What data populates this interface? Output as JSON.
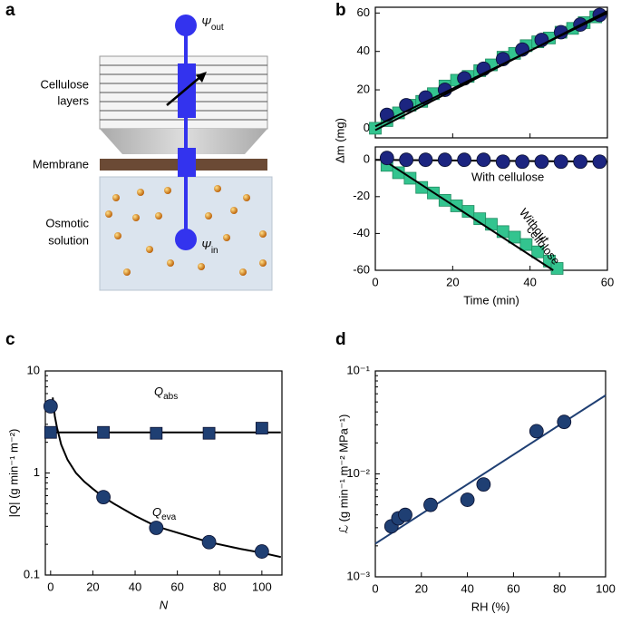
{
  "panel_labels": [
    "a",
    "b",
    "c",
    "d"
  ],
  "diagram": {
    "psi_out": {
      "symbol": "Ψ",
      "sub": "out"
    },
    "cellulose_label": [
      "Cellulose",
      "layers"
    ],
    "membrane_label": "Membrane",
    "solution_label": [
      "Osmotic",
      "solution"
    ],
    "psi_in": {
      "symbol": "Ψ",
      "sub": "in"
    }
  },
  "chart_data": [
    {
      "type": "scatter",
      "ylabel": "Δm (mg)",
      "xlim": [
        0,
        60
      ],
      "ylim": [
        -5,
        63
      ],
      "xticks": [
        0,
        20,
        40,
        60
      ],
      "xtick_labels": false,
      "yticks": [
        0,
        20,
        40,
        60
      ],
      "series": [
        {
          "marker": "square",
          "color": "#33c48f",
          "x": [
            0,
            3,
            6,
            9,
            12,
            15,
            18,
            21,
            24,
            27,
            30,
            33,
            36,
            39,
            42,
            45,
            48,
            51,
            54,
            57
          ],
          "values": [
            0,
            4,
            8,
            12,
            14,
            18,
            22,
            25,
            27,
            30,
            33,
            37,
            39,
            43,
            45,
            47,
            50,
            52,
            55,
            58
          ]
        },
        {
          "marker": "circle",
          "color": "#1c2580",
          "x": [
            3,
            8,
            13,
            18,
            23,
            28,
            33,
            38,
            43,
            48,
            53,
            58
          ],
          "values": [
            7,
            12,
            16,
            20,
            26,
            31,
            36,
            41,
            46,
            50,
            54,
            59
          ]
        },
        {
          "marker": "line",
          "color": "#000000",
          "x": [
            0,
            60
          ],
          "values": [
            1,
            60
          ]
        },
        {
          "marker": "line",
          "color": "#000000",
          "x": [
            0,
            60
          ],
          "values": [
            -1,
            61
          ]
        }
      ]
    },
    {
      "type": "scatter",
      "xlabel": "Time (min)",
      "xlim": [
        0,
        60
      ],
      "ylim": [
        -60,
        7
      ],
      "xticks": [
        0,
        20,
        40,
        60
      ],
      "yticks": [
        0,
        -20,
        -40,
        -60
      ],
      "annotations": [
        "With cellulose",
        "Without",
        "cellulose"
      ],
      "series": [
        {
          "marker": "square",
          "color": "#33c48f",
          "x": [
            3,
            6,
            9,
            12,
            15,
            18,
            21,
            24,
            27,
            30,
            33,
            36,
            39,
            42,
            45,
            47
          ],
          "values": [
            -3,
            -7,
            -10,
            -15,
            -18,
            -22,
            -25,
            -28,
            -32,
            -35,
            -39,
            -42,
            -46,
            -50,
            -55,
            -59
          ]
        },
        {
          "marker": "line",
          "color": "#000000",
          "x": [
            2,
            46
          ],
          "values": [
            0,
            -60
          ]
        },
        {
          "marker": "line",
          "color": "#000000",
          "x": [
            0,
            60
          ],
          "values": [
            0,
            -1
          ]
        },
        {
          "marker": "circle",
          "color": "#1c2580",
          "x": [
            3,
            8,
            13,
            18,
            23,
            28,
            33,
            38,
            43,
            48,
            53,
            58
          ],
          "values": [
            1,
            0,
            0,
            0,
            0,
            0,
            -1,
            -1,
            -1,
            -1,
            -1,
            -1
          ]
        }
      ]
    },
    {
      "type": "scatter",
      "log_y": true,
      "ylabel": "|Q| (g min⁻¹ m⁻²)",
      "xlabel": "N",
      "xlim": [
        -2.5,
        109.5
      ],
      "ylim": [
        0.1,
        10
      ],
      "xticks": [
        0,
        20,
        40,
        60,
        80,
        100
      ],
      "yticks": [
        0.1,
        1,
        10
      ],
      "annotations": [
        {
          "symbol": "Q",
          "sub": "abs"
        },
        {
          "symbol": "Q",
          "sub": "eva"
        }
      ],
      "series": [
        {
          "marker": "line",
          "color": "#000000",
          "x": [
            0,
            109
          ],
          "values": [
            2.5,
            2.5
          ]
        },
        {
          "marker": "line",
          "color": "#000000",
          "x": [
            1,
            2,
            3,
            5,
            8,
            12,
            16,
            20,
            25,
            30,
            40,
            50,
            60,
            75,
            90,
            100,
            109
          ],
          "values": [
            5.5,
            3.6,
            2.8,
            1.9,
            1.35,
            1.0,
            0.82,
            0.7,
            0.58,
            0.5,
            0.38,
            0.3,
            0.26,
            0.21,
            0.18,
            0.165,
            0.15
          ]
        },
        {
          "marker": "square",
          "color": "#1f3f73",
          "x": [
            0,
            25,
            50,
            75,
            100
          ],
          "values": [
            2.5,
            2.5,
            2.45,
            2.45,
            2.75
          ]
        },
        {
          "marker": "circle",
          "color": "#1f3f73",
          "x": [
            0,
            25,
            50,
            75,
            100
          ],
          "values": [
            4.5,
            0.58,
            0.29,
            0.21,
            0.17
          ]
        }
      ]
    },
    {
      "type": "scatter",
      "log_y": true,
      "ylabel": "ℒ (g min⁻¹ m⁻² MPa⁻¹)",
      "xlabel": "RH (%)",
      "xlim": [
        0,
        100
      ],
      "ylim": [
        0.001,
        0.1
      ],
      "xticks": [
        0,
        20,
        40,
        60,
        80,
        100
      ],
      "yticks": [
        {
          "value": 0.001,
          "label": "10⁻³"
        },
        {
          "value": 0.01,
          "label": "10⁻²"
        },
        {
          "value": 0.1,
          "label": "10⁻¹"
        }
      ],
      "series": [
        {
          "marker": "line",
          "color": "#1f3f73",
          "x": [
            0,
            100
          ],
          "values": [
            0.0021,
            0.058
          ]
        },
        {
          "marker": "circle",
          "color": "#1f3f73",
          "x": [
            7,
            10,
            13,
            24,
            40,
            47,
            70,
            82
          ],
          "values": [
            0.0031,
            0.0037,
            0.004,
            0.005,
            0.0056,
            0.0079,
            0.026,
            0.032
          ]
        }
      ]
    }
  ]
}
